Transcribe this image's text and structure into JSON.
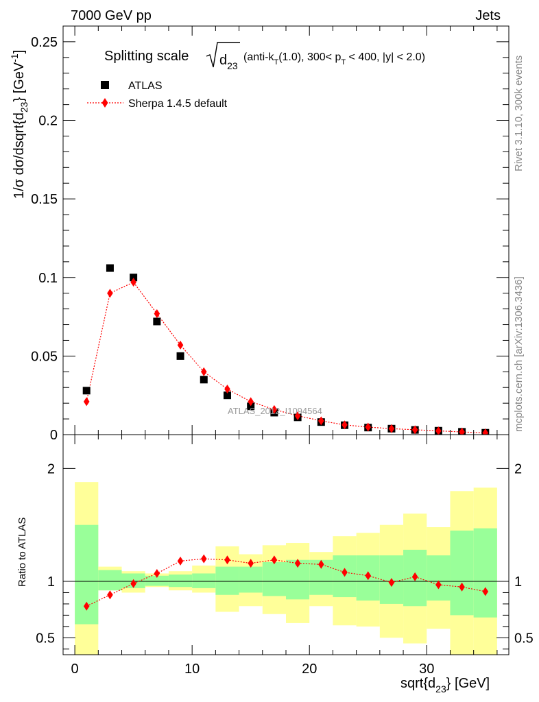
{
  "header": {
    "left": "7000 GeV pp",
    "right": "Jets"
  },
  "title": {
    "prefix": "Splitting scale",
    "variable": "d",
    "variable_sub": "23",
    "cuts": "(anti-k",
    "cuts_sub": "T",
    "cuts_rest": "(1.0), 300< p",
    "cuts_sub2": "T",
    "cuts_end": " < 400, |y| < 2.0)"
  },
  "side_labels": {
    "rivet": "Rivet 3.1.10,  300k events",
    "mcplots": "mcplots.cern.ch [arXiv:1306.3436]"
  },
  "watermark": "ATLAS_2012_I1094564",
  "legend": {
    "data": "ATLAS",
    "mc": "Sherpa 1.4.5 default"
  },
  "axes": {
    "main_ylabel": "1/σ dσ/dsqrt{d",
    "main_ylabel_sub": "23",
    "main_ylabel_end": "} [GeV",
    "main_ylabel_sup": "-1",
    "main_ylabel_close": "]",
    "ratio_ylabel": "Ratio to ATLAS",
    "xlabel": "sqrt{d",
    "xlabel_sub": "23",
    "xlabel_end": "} [GeV]"
  },
  "chart_data": [
    {
      "type": "scatter",
      "panel": "main",
      "x_edges": [
        0,
        2,
        4,
        6,
        8,
        10,
        12,
        14,
        16,
        18,
        20,
        22,
        24,
        26,
        28,
        30,
        32,
        34,
        36
      ],
      "x": [
        1,
        3,
        5,
        7,
        9,
        11,
        13,
        15,
        17,
        19,
        21,
        23,
        25,
        27,
        29,
        31,
        33,
        35
      ],
      "xlim": [
        -1,
        37
      ],
      "ylim": [
        0,
        0.26
      ],
      "yticks": [
        0,
        0.05,
        0.1,
        0.15,
        0.2,
        0.25
      ],
      "ytick_labels": [
        "0",
        "0.05",
        "0.1",
        "0.15",
        "0.2",
        "0.25"
      ],
      "series": [
        {
          "name": "ATLAS",
          "marker": "square",
          "color": "#000000",
          "values": [
            0.028,
            0.106,
            0.1,
            0.072,
            0.05,
            0.035,
            0.025,
            0.018,
            0.014,
            0.011,
            0.008,
            0.006,
            0.0045,
            0.0038,
            0.003,
            0.0025,
            0.0018,
            0.0012
          ]
        },
        {
          "name": "Sherpa 1.4.5 default",
          "marker": "diamond",
          "color": "#ff0000",
          "line": "dotted",
          "values": [
            0.021,
            0.09,
            0.097,
            0.077,
            0.057,
            0.04,
            0.029,
            0.021,
            0.016,
            0.012,
            0.0088,
            0.0062,
            0.0048,
            0.0038,
            0.0031,
            0.0024,
            0.0017,
            0.0011
          ]
        }
      ]
    },
    {
      "type": "scatter",
      "panel": "ratio",
      "x_edges": [
        0,
        2,
        4,
        6,
        8,
        10,
        12,
        14,
        16,
        18,
        20,
        22,
        24,
        26,
        28,
        30,
        32,
        34,
        36
      ],
      "x": [
        1,
        3,
        5,
        7,
        9,
        11,
        13,
        15,
        17,
        19,
        21,
        23,
        25,
        27,
        29,
        31,
        33,
        35
      ],
      "xlim": [
        -1,
        37
      ],
      "ylim": [
        0.35,
        2.3
      ],
      "yticks": [
        0.5,
        1,
        2
      ],
      "ytick_labels": [
        "0.5",
        "1",
        "2"
      ],
      "xticks": [
        0,
        10,
        20,
        30
      ],
      "xtick_labels": [
        "0",
        "10",
        "20",
        "30"
      ],
      "reference_line": 1,
      "band_inner": {
        "color": "#99ff99",
        "low": [
          0.62,
          0.92,
          0.94,
          0.96,
          0.95,
          0.94,
          0.88,
          0.9,
          0.87,
          0.84,
          0.88,
          0.86,
          0.83,
          0.8,
          0.78,
          0.83,
          0.7,
          0.68
        ],
        "high": [
          1.5,
          1.1,
          1.07,
          1.05,
          1.06,
          1.07,
          1.13,
          1.13,
          1.17,
          1.19,
          1.19,
          1.23,
          1.23,
          1.23,
          1.28,
          1.23,
          1.45,
          1.47
        ]
      },
      "band_outer": {
        "color": "#ffff99",
        "low": [
          0.35,
          0.92,
          0.9,
          0.95,
          0.92,
          0.9,
          0.73,
          0.78,
          0.71,
          0.63,
          0.78,
          0.61,
          0.6,
          0.5,
          0.45,
          0.58,
          0.35,
          0.35
        ],
        "high": [
          1.88,
          1.13,
          1.09,
          1.07,
          1.09,
          1.14,
          1.31,
          1.24,
          1.32,
          1.34,
          1.26,
          1.4,
          1.43,
          1.5,
          1.6,
          1.48,
          1.8,
          1.83
        ]
      },
      "series": [
        {
          "name": "Sherpa 1.4.5 default",
          "marker": "diamond",
          "color": "#ff0000",
          "line": "dotted",
          "values": [
            0.78,
            0.88,
            0.98,
            1.07,
            1.18,
            1.2,
            1.19,
            1.16,
            1.19,
            1.16,
            1.15,
            1.08,
            1.05,
            0.99,
            1.04,
            0.97,
            0.95,
            0.91
          ]
        }
      ]
    }
  ]
}
